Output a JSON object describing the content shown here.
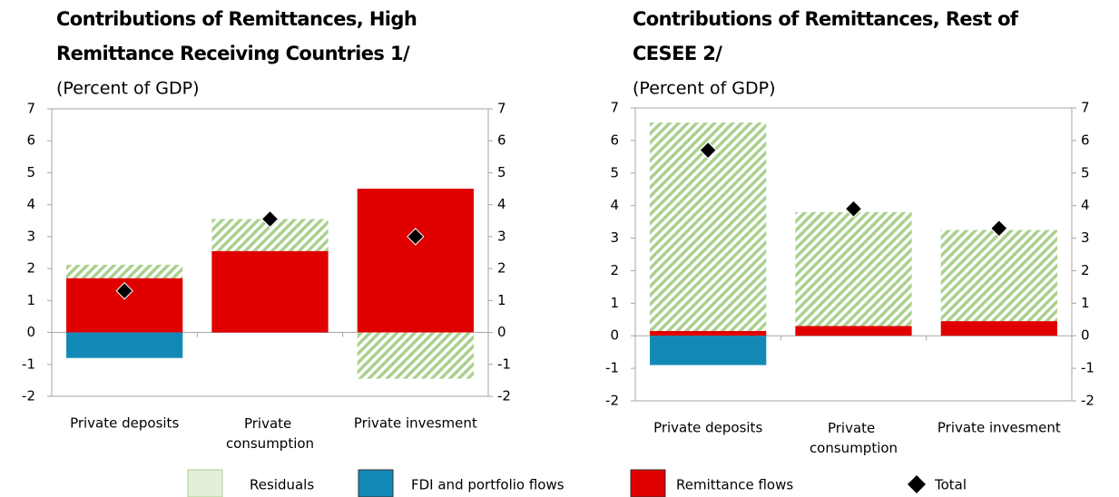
{
  "chart_data": [
    {
      "type": "bar",
      "stacked": true,
      "title": "Contributions of Remittances, High Remittance Receiving Countries 1/",
      "subtitle": "(Percent of GDP)",
      "categories": [
        "Private deposits",
        "Private consumption",
        "Private invesment"
      ],
      "series": [
        {
          "name": "Remittance flows",
          "color": "#e00000",
          "values": [
            1.7,
            2.55,
            4.5
          ]
        },
        {
          "name": "FDI and portfolio flows",
          "color": "#138ab6",
          "values": [
            -0.8,
            0,
            0
          ]
        },
        {
          "name": "Residuals",
          "color": "#a9d18e",
          "hatch": true,
          "values": [
            0.42,
            1.0,
            -1.45
          ]
        },
        {
          "name": "Total",
          "type": "scatter",
          "marker": "diamond",
          "color": "#000000",
          "values": [
            1.3,
            3.55,
            3.0
          ]
        }
      ],
      "ylim": [
        -2,
        7
      ],
      "yticks": [
        -2,
        -1,
        0,
        1,
        2,
        3,
        4,
        5,
        6,
        7
      ],
      "y2lim": [
        -2,
        7
      ],
      "y2ticks": [
        -2,
        -1,
        0,
        1,
        2,
        3,
        4,
        5,
        6,
        7
      ]
    },
    {
      "type": "bar",
      "stacked": true,
      "title": "Contributions of Remittances, Rest of CESEE 2/",
      "subtitle": "(Percent of GDP)",
      "categories": [
        "Private deposits",
        "Private consumption",
        "Private invesment"
      ],
      "series": [
        {
          "name": "Remittance flows",
          "color": "#e00000",
          "values": [
            0.15,
            0.3,
            0.45
          ]
        },
        {
          "name": "FDI and portfolio flows",
          "color": "#138ab6",
          "values": [
            -0.9,
            0,
            0
          ]
        },
        {
          "name": "Residuals",
          "color": "#a9d18e",
          "hatch": true,
          "values": [
            6.4,
            3.5,
            2.8
          ]
        },
        {
          "name": "Total",
          "type": "scatter",
          "marker": "diamond",
          "color": "#000000",
          "values": [
            5.7,
            3.9,
            3.3
          ]
        }
      ],
      "ylim": [
        -2,
        7
      ],
      "yticks": [
        -2,
        -1,
        0,
        1,
        2,
        3,
        4,
        5,
        6,
        7
      ],
      "y2lim": [
        -2,
        7
      ],
      "y2ticks": [
        -2,
        -1,
        0,
        1,
        2,
        3,
        4,
        5,
        6,
        7
      ]
    }
  ]
}
